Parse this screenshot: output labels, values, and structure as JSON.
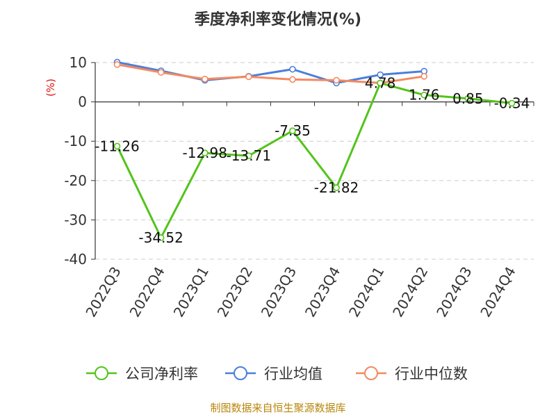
{
  "chart_data": {
    "type": "line",
    "title": "季度净利率变化情况(%)",
    "ylabel": "(%)",
    "xlabel": "",
    "categories": [
      "2022Q3",
      "2022Q4",
      "2023Q1",
      "2023Q2",
      "2023Q3",
      "2023Q4",
      "2024Q1",
      "2024Q2",
      "2024Q3",
      "2024Q4"
    ],
    "yticks": [
      10,
      0,
      -10,
      -20,
      -30,
      -40
    ],
    "ylim": [
      -40,
      10
    ],
    "grid": "horizontal dashed",
    "legend_position": "bottom",
    "series": [
      {
        "name": "公司净利率",
        "color": "#52c41a",
        "values": [
          -11.26,
          -34.52,
          -12.98,
          -13.71,
          -7.35,
          -21.82,
          4.78,
          1.76,
          0.85,
          -0.34
        ],
        "labels": [
          "-11.26",
          "-34.52",
          "-12.98",
          "-13.71",
          "-7.35",
          "-21.82",
          "4.78",
          "1.76",
          "0.85",
          "-0.34"
        ]
      },
      {
        "name": "行业均值",
        "color": "#4a7fdb",
        "values": [
          10.1,
          7.9,
          5.5,
          6.5,
          8.3,
          4.8,
          6.9,
          7.8,
          null,
          null
        ]
      },
      {
        "name": "行业中位数",
        "color": "#f4895f",
        "values": [
          9.5,
          7.5,
          5.8,
          6.4,
          5.7,
          5.5,
          4.8,
          6.5,
          null,
          null
        ]
      }
    ]
  },
  "source": "制图数据来自恒生聚源数据库"
}
